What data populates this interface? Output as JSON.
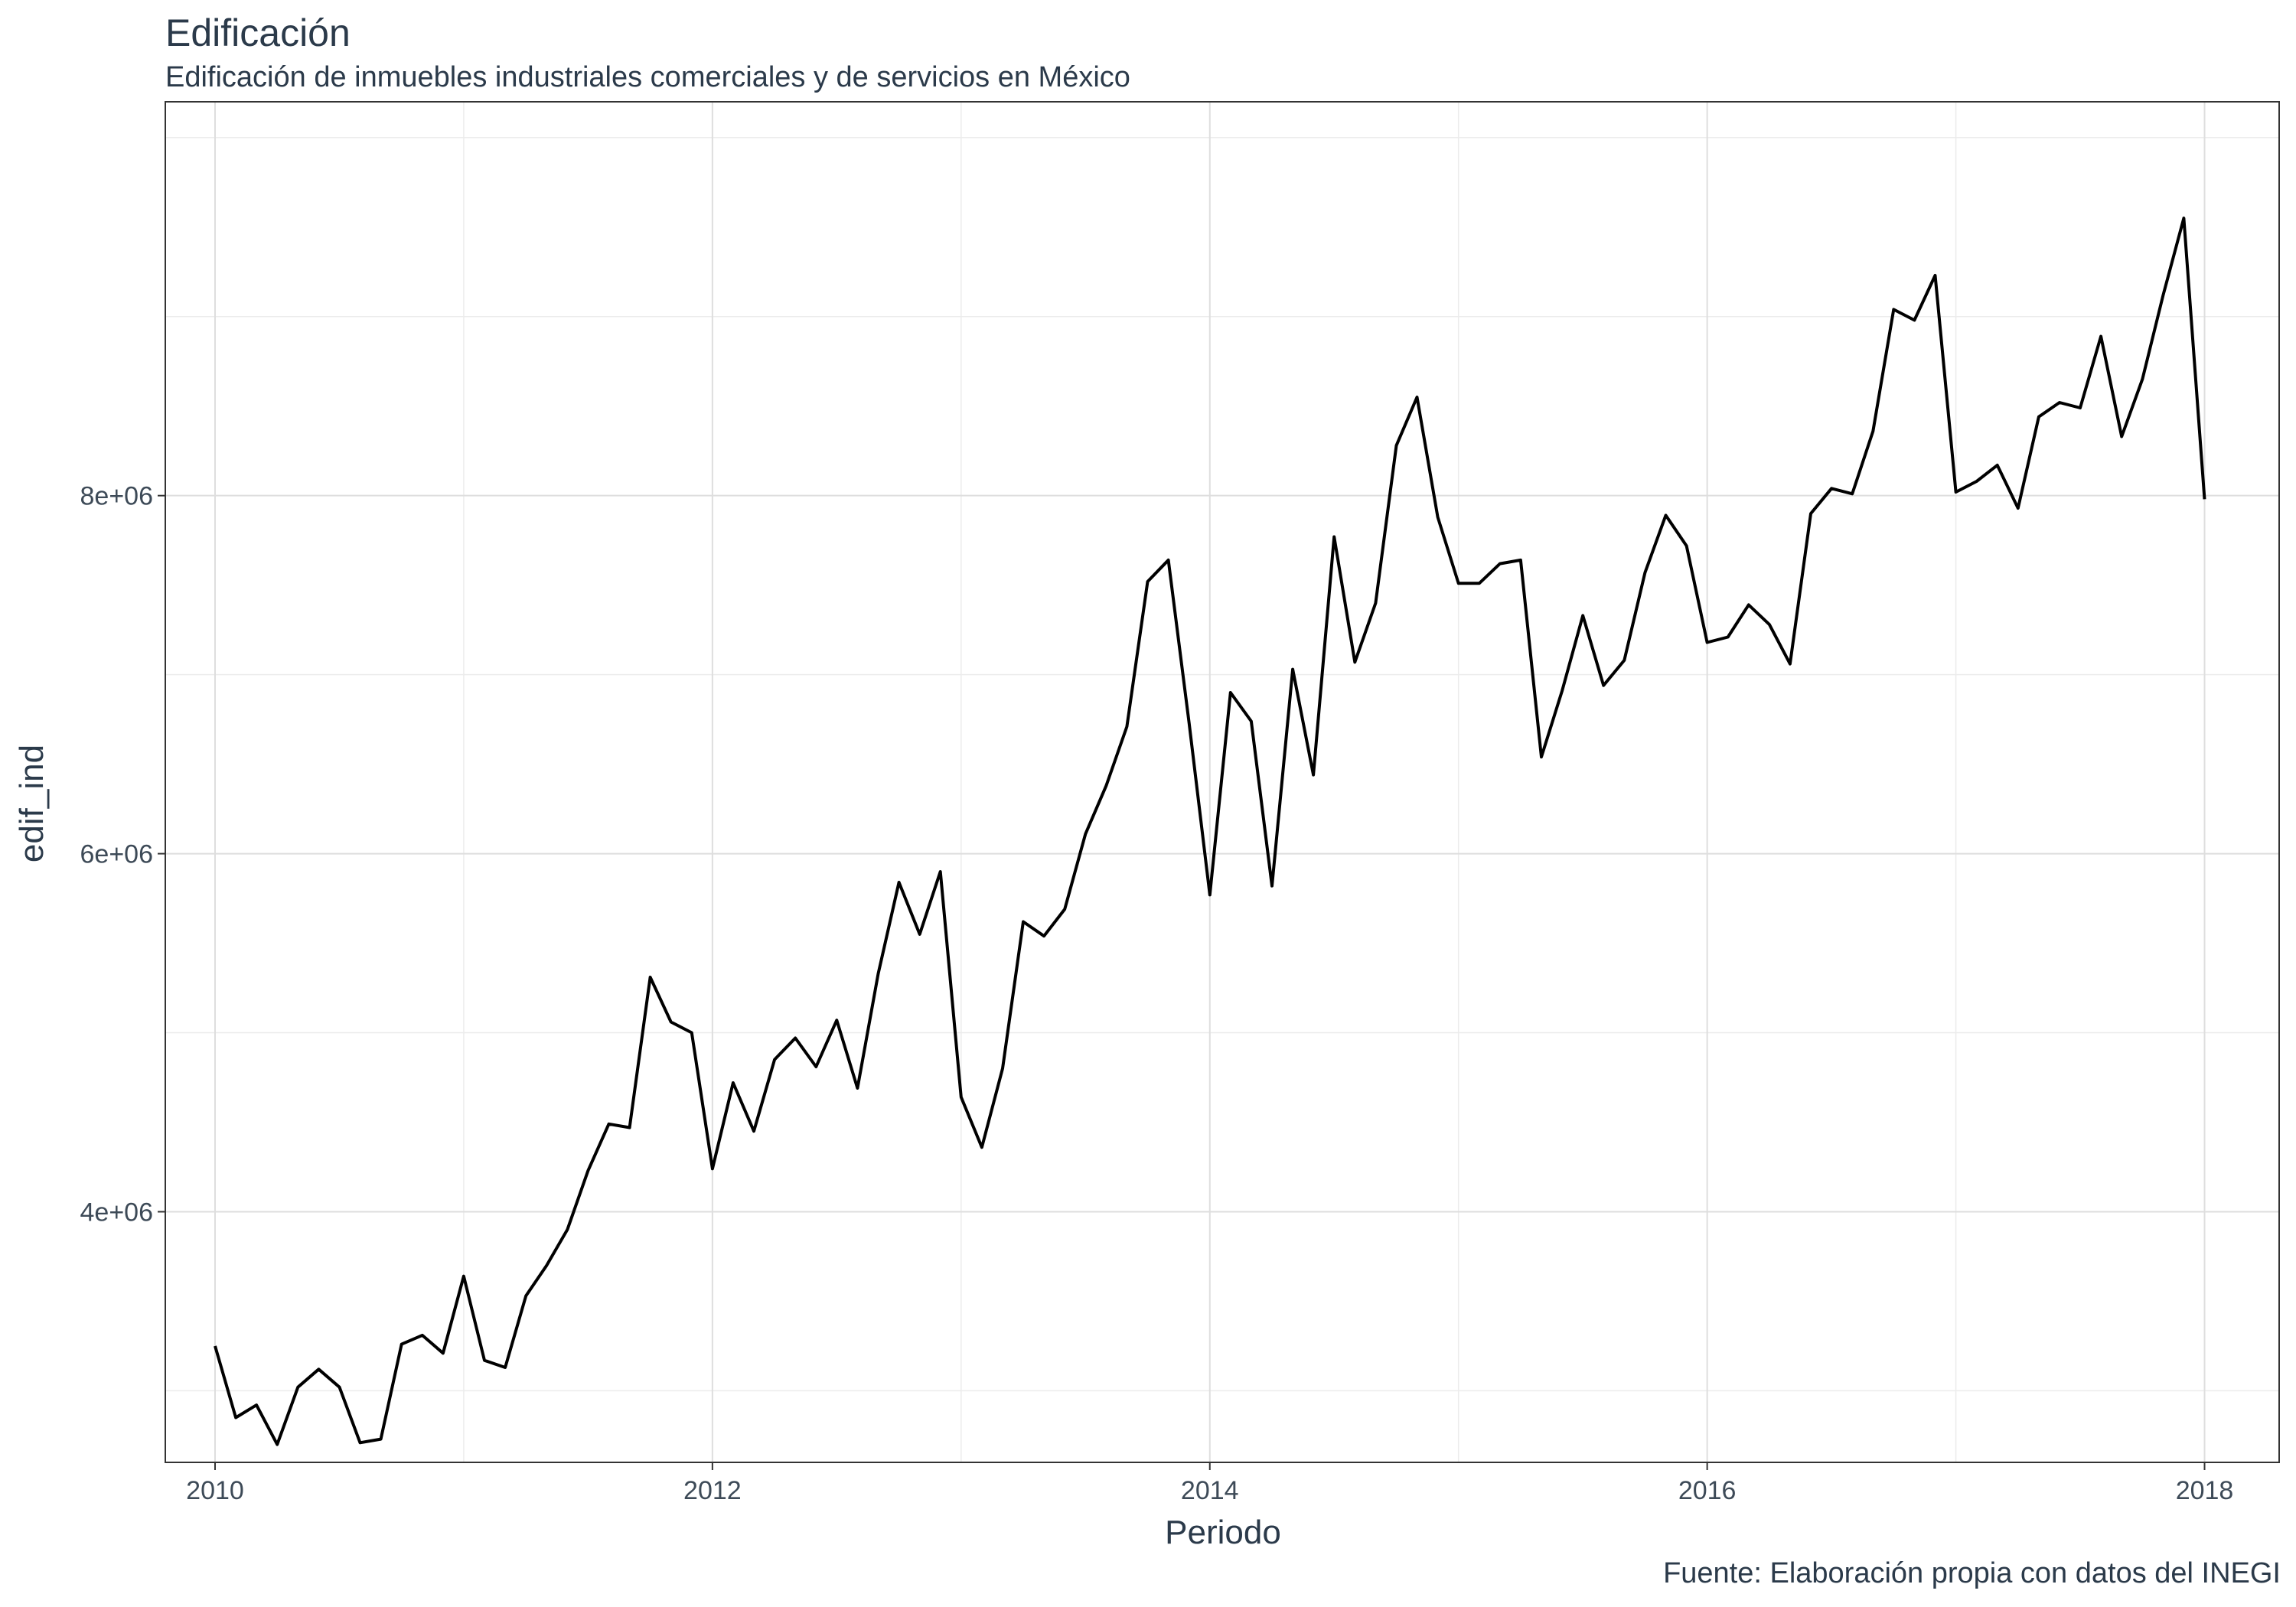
{
  "chart_data": {
    "type": "line",
    "title": "Edificación",
    "subtitle": "Edificación de inmuebles industriales comerciales y de servicios en México",
    "caption": "Fuente: Elaboración propia con datos del INEGI",
    "xlabel": "Periodo",
    "ylabel": "edif_ind",
    "xlim": [
      2009.8,
      2018.3
    ],
    "ylim": [
      2600000,
      10200000
    ],
    "x_ticks": [
      2010,
      2012,
      2014,
      2016,
      2018
    ],
    "x_tick_labels": [
      "2010",
      "2012",
      "2014",
      "2016",
      "2018"
    ],
    "y_ticks": [
      4000000,
      6000000,
      8000000
    ],
    "y_tick_labels": [
      "4e+06",
      "6e+06",
      "8e+06"
    ],
    "grid": true,
    "series": [
      {
        "color": "#000000",
        "x_start": "2010-01",
        "frequency": "monthly",
        "values": [
          3250000,
          2850000,
          2920000,
          2700000,
          3020000,
          3120000,
          3020000,
          2710000,
          2730000,
          3260000,
          3310000,
          3210000,
          3640000,
          3170000,
          3130000,
          3530000,
          3700000,
          3900000,
          4230000,
          4490000,
          4470000,
          5310000,
          5060000,
          5000000,
          4240000,
          4720000,
          4450000,
          4850000,
          4970000,
          4810000,
          5070000,
          4690000,
          5330000,
          5840000,
          5550000,
          5900000,
          4640000,
          4360000,
          4800000,
          5620000,
          5540000,
          5690000,
          6110000,
          6380000,
          6710000,
          7520000,
          7640000,
          6730000,
          5770000,
          6900000,
          6740000,
          5820000,
          7030000,
          6440000,
          7770000,
          7070000,
          7400000,
          8280000,
          8550000,
          7880000,
          7510000,
          7510000,
          7620000,
          7640000,
          6540000,
          6910000,
          7330000,
          6940000,
          7080000,
          7570000,
          7890000,
          7720000,
          7180000,
          7210000,
          7390000,
          7280000,
          7060000,
          7900000,
          8040000,
          8010000,
          8360000,
          9040000,
          8980000,
          9230000,
          8020000,
          8080000,
          8170000,
          7930000,
          8440000,
          8520000,
          8490000,
          8890000,
          8330000,
          8650000,
          9120000,
          9550000,
          7980000
        ]
      }
    ]
  }
}
